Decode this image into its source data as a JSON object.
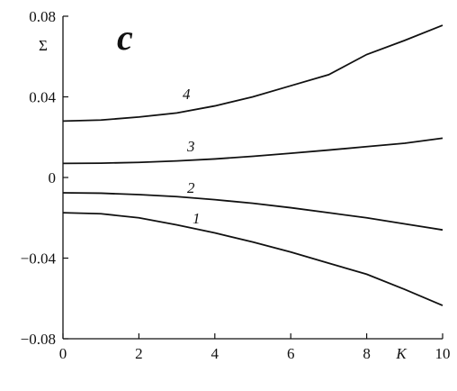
{
  "chart_data": {
    "type": "line",
    "panel_label": "c",
    "y_label": "Σ",
    "x_label": "K",
    "x": [
      0,
      1,
      2,
      3,
      4,
      5,
      6,
      7,
      8,
      9,
      10
    ],
    "series": [
      {
        "name": "1",
        "color": "#111111",
        "values": [
          -0.0175,
          -0.018,
          -0.02,
          -0.0235,
          -0.0275,
          -0.032,
          -0.037,
          -0.0425,
          -0.048,
          -0.0555,
          -0.0635
        ]
      },
      {
        "name": "2",
        "color": "#111111",
        "values": [
          -0.0076,
          -0.0078,
          -0.0085,
          -0.0095,
          -0.011,
          -0.0128,
          -0.015,
          -0.0175,
          -0.02,
          -0.023,
          -0.026
        ]
      },
      {
        "name": "3",
        "color": "#111111",
        "values": [
          0.007,
          0.0071,
          0.0075,
          0.0082,
          0.0092,
          0.0105,
          0.012,
          0.0136,
          0.0153,
          0.017,
          0.0195
        ]
      },
      {
        "name": "4",
        "color": "#111111",
        "values": [
          0.028,
          0.0285,
          0.03,
          0.032,
          0.0355,
          0.04,
          0.0455,
          0.051,
          0.061,
          0.068,
          0.0755
        ]
      }
    ],
    "xlim": [
      0,
      10
    ],
    "ylim": [
      -0.08,
      0.08
    ],
    "xticks": [
      0,
      2,
      4,
      6,
      8,
      10
    ],
    "yticks": [
      {
        "value": -0.08,
        "label": "−0.08"
      },
      {
        "value": -0.04,
        "label": "−0.04"
      },
      0,
      0.04,
      0.08
    ]
  }
}
